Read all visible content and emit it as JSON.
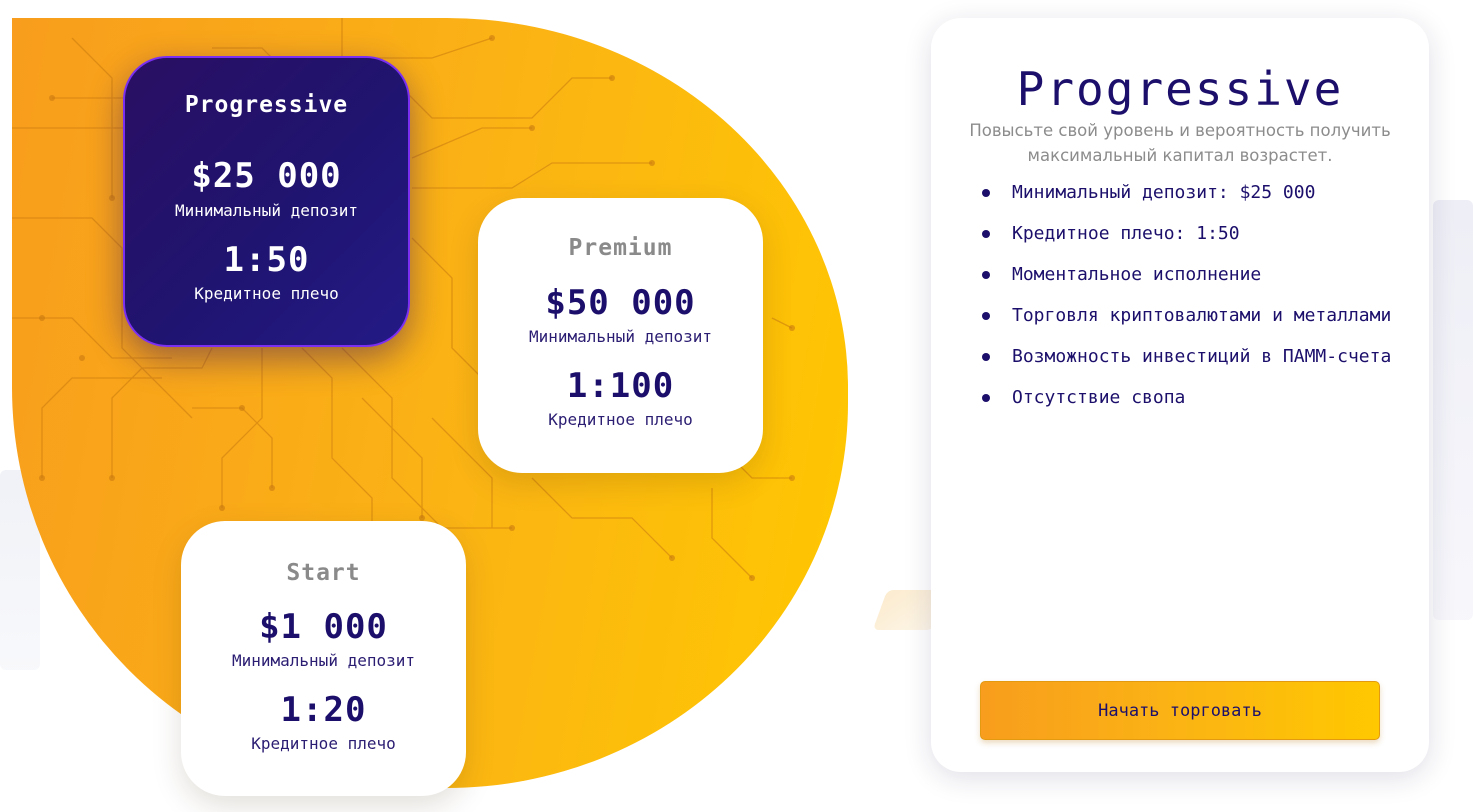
{
  "plans": {
    "progressive": {
      "name": "Progressive",
      "amount": "$25 000",
      "deposit_label": "Минимальный депозит",
      "leverage": "1:50",
      "leverage_label": "Кредитное плечо"
    },
    "premium": {
      "name": "Premium",
      "amount": "$50 000",
      "deposit_label": "Минимальный депозит",
      "leverage": "1:100",
      "leverage_label": "Кредитное плечо"
    },
    "start": {
      "name": "Start",
      "amount": "$1 000",
      "deposit_label": "Минимальный депозит",
      "leverage": "1:20",
      "leverage_label": "Кредитное плечо"
    }
  },
  "details": {
    "title": "Progressive",
    "description": "Повысьте свой уровень и вероятность получить максимальный капитал возрастет.",
    "features": [
      "Минимальный депозит: $25 000",
      "Кредитное плечо: 1:50",
      "Моментальное исполнение",
      "Торговля криптовалютами и металлами",
      "Возможность инвестиций в ПАММ-счета",
      "Отсутствие свопа"
    ],
    "button_label": "Начать торговать"
  },
  "colors": {
    "accent_dark": "#1b0f6b",
    "accent_orange": "#f89d1d",
    "accent_yellow": "#ffc800",
    "selected_border": "#7b2ff0"
  }
}
